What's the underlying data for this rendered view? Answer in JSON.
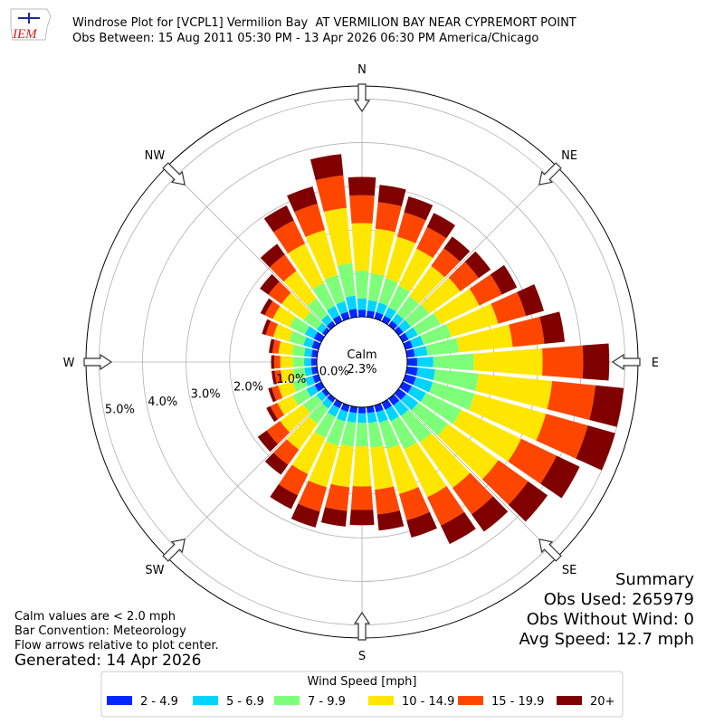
{
  "chart_data": {
    "type": "windrose",
    "title": "Windrose Plot for [VCPL1] Vermilion Bay  AT VERMILION BAY NEAR CYPREMORT POINT",
    "subtitle": "Obs Between: 15 Aug 2011 05:30 PM - 13 Apr 2026 06:30 PM America/Chicago",
    "logo": "IEM",
    "x": [
      0,
      10,
      20,
      30,
      40,
      50,
      60,
      70,
      80,
      90,
      100,
      110,
      120,
      130,
      140,
      150,
      160,
      170,
      180,
      190,
      200,
      210,
      220,
      230,
      240,
      250,
      260,
      270,
      280,
      290,
      300,
      310,
      320,
      330,
      340,
      350
    ],
    "xticks": [
      {
        "value": 0,
        "label": "N"
      },
      {
        "value": 45,
        "label": "NE"
      },
      {
        "value": 90,
        "label": "E"
      },
      {
        "value": 135,
        "label": "SE"
      },
      {
        "value": 180,
        "label": "S"
      },
      {
        "value": 225,
        "label": "SW"
      },
      {
        "value": 270,
        "label": "W"
      },
      {
        "value": 315,
        "label": "NW"
      }
    ],
    "rlim": [
      0,
      5.3
    ],
    "rticks": [
      {
        "value": 0,
        "label": "0.0%"
      },
      {
        "value": 1,
        "label": "1.0%"
      },
      {
        "value": 2,
        "label": "2.0%"
      },
      {
        "value": 3,
        "label": "3.0%"
      },
      {
        "value": 4,
        "label": "4.0%"
      },
      {
        "value": 5,
        "label": "5.0%"
      }
    ],
    "grid": true,
    "calm": {
      "label": "Calm",
      "value": 2.3,
      "value_label": "2.3%"
    },
    "legend_title": "Wind Speed [mph]",
    "series": [
      {
        "name": "2 - 4.9",
        "color": "#0028ff",
        "values": [
          0.16,
          0.15,
          0.15,
          0.14,
          0.13,
          0.13,
          0.15,
          0.17,
          0.18,
          0.23,
          0.25,
          0.25,
          0.23,
          0.21,
          0.19,
          0.18,
          0.16,
          0.14,
          0.14,
          0.14,
          0.15,
          0.14,
          0.11,
          0.1,
          0.17,
          0.14,
          0.13,
          0.13,
          0.13,
          0.16,
          0.19,
          0.09,
          0.12,
          0.15,
          0.16,
          0.19
        ]
      },
      {
        "name": "5 - 6.9",
        "color": "#00d4ff",
        "values": [
          0.26,
          0.24,
          0.23,
          0.22,
          0.2,
          0.21,
          0.23,
          0.26,
          0.29,
          0.37,
          0.4,
          0.4,
          0.36,
          0.34,
          0.3,
          0.29,
          0.25,
          0.23,
          0.22,
          0.22,
          0.23,
          0.22,
          0.17,
          0.15,
          0.21,
          0.18,
          0.16,
          0.16,
          0.17,
          0.2,
          0.23,
          0.15,
          0.18,
          0.24,
          0.25,
          0.3
        ]
      },
      {
        "name": "7 - 9.9",
        "color": "#7dff7a",
        "values": [
          0.64,
          0.61,
          0.58,
          0.55,
          0.5,
          0.52,
          0.58,
          0.66,
          0.73,
          0.93,
          1.0,
          1.0,
          0.9,
          0.84,
          0.75,
          0.72,
          0.63,
          0.57,
          0.54,
          0.55,
          0.58,
          0.54,
          0.43,
          0.38,
          0.35,
          0.3,
          0.26,
          0.26,
          0.28,
          0.34,
          0.39,
          0.37,
          0.46,
          0.59,
          0.63,
          0.75
        ]
      },
      {
        "name": "10 - 14.9",
        "color": "#ffe600",
        "values": [
          1.09,
          1.04,
          0.99,
          0.94,
          0.85,
          0.88,
          0.99,
          1.12,
          1.24,
          1.58,
          1.7,
          1.7,
          1.53,
          1.43,
          1.28,
          1.22,
          1.07,
          0.97,
          0.92,
          0.94,
          0.99,
          0.92,
          0.73,
          0.65,
          0.39,
          0.34,
          0.29,
          0.29,
          0.31,
          0.38,
          0.43,
          0.63,
          0.78,
          1.0,
          1.07,
          1.28
        ]
      },
      {
        "name": "15 - 19.9",
        "color": "#ff4600",
        "values": [
          0.64,
          0.61,
          0.58,
          0.55,
          0.5,
          0.52,
          0.58,
          0.66,
          0.73,
          0.93,
          1.0,
          1.0,
          0.9,
          0.84,
          0.75,
          0.72,
          0.63,
          0.57,
          0.54,
          0.55,
          0.58,
          0.54,
          0.43,
          0.38,
          0.18,
          0.16,
          0.14,
          0.14,
          0.14,
          0.18,
          0.2,
          0.37,
          0.46,
          0.59,
          0.63,
          0.75
        ]
      },
      {
        "name": "20+",
        "color": "#800000",
        "values": [
          0.42,
          0.4,
          0.38,
          0.36,
          0.33,
          0.34,
          0.38,
          0.43,
          0.47,
          0.6,
          0.65,
          0.65,
          0.59,
          0.55,
          0.49,
          0.47,
          0.41,
          0.37,
          0.35,
          0.36,
          0.38,
          0.35,
          0.28,
          0.25,
          0.1,
          0.08,
          0.07,
          0.07,
          0.08,
          0.09,
          0.11,
          0.24,
          0.3,
          0.38,
          0.41,
          0.49
        ]
      }
    ],
    "notes": [
      "Calm values are < 2.0 mph",
      "Bar Convention: Meteorology",
      "Flow arrows relative to plot center."
    ],
    "generated": "Generated: 14 Apr 2026",
    "summary": [
      "Summary",
      "Obs Used: 265979",
      "Obs Without Wind: 0",
      "Avg Speed: 12.7 mph"
    ]
  }
}
